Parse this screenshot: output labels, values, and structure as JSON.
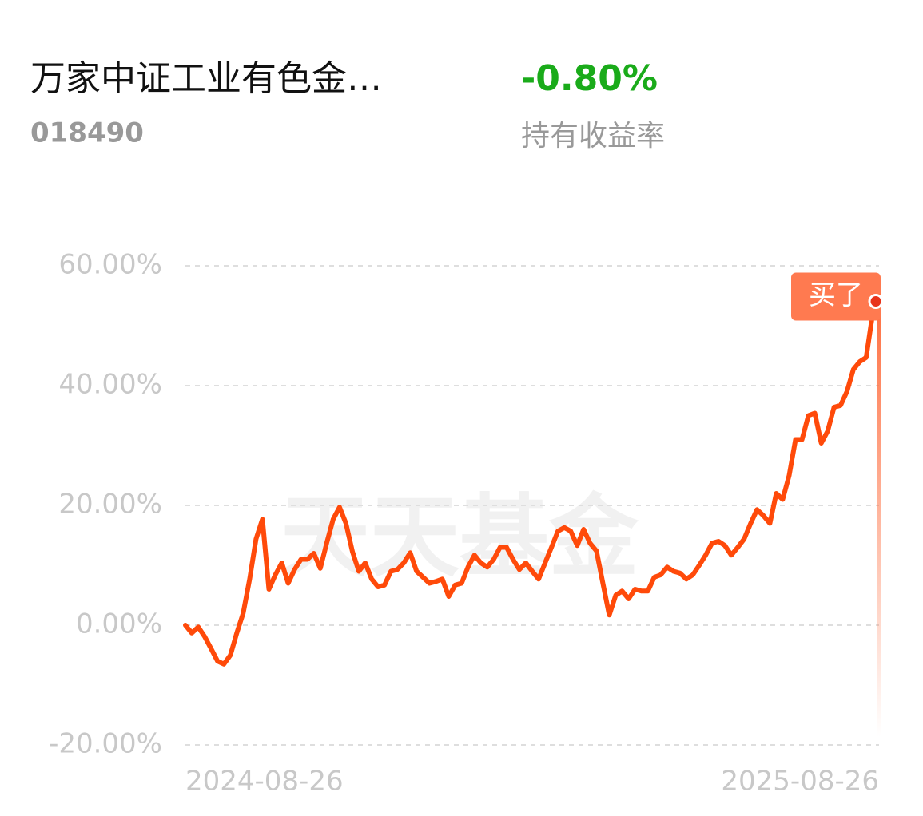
{
  "header": {
    "title": "万家中证工业有色金…",
    "code": "018490",
    "return_value": "-0.80%",
    "return_label": "持有收益率"
  },
  "chart_data": {
    "type": "line",
    "watermark": "天天基金",
    "annotation": "买了",
    "categories": [
      "2024-08-26",
      null,
      null,
      null,
      null,
      null,
      null,
      null,
      null,
      null,
      null,
      null,
      null,
      null,
      null,
      null,
      null,
      null,
      null,
      null,
      null,
      null,
      null,
      null,
      null,
      null,
      null,
      null,
      null,
      null,
      null,
      null,
      null,
      null,
      null,
      null,
      null,
      null,
      null,
      null,
      null,
      null,
      null,
      null,
      null,
      null,
      null,
      null,
      null,
      null,
      null,
      null,
      null,
      null,
      null,
      null,
      null,
      null,
      null,
      null,
      null,
      null,
      null,
      null,
      null,
      null,
      null,
      null,
      null,
      null,
      null,
      null,
      null,
      null,
      null,
      null,
      null,
      null,
      null,
      null,
      null,
      null,
      null,
      null,
      null,
      null,
      null,
      null,
      null,
      null,
      null,
      null,
      null,
      null,
      null,
      null,
      null,
      null,
      null,
      null,
      null,
      null,
      null,
      null,
      null,
      null,
      null,
      null,
      "2025-08-26"
    ],
    "series": [
      {
        "color": "#ff4a0a",
        "values": [
          0,
          -1.3,
          -0.3,
          -1.9,
          -3.9,
          -6,
          -6.5,
          -5,
          -1.3,
          2,
          7.7,
          14.4,
          17.7,
          6,
          8.4,
          10.4,
          7,
          9.3,
          11,
          11,
          12,
          9.5,
          13.7,
          17.7,
          19.7,
          17,
          12.3,
          9,
          10.4,
          7.7,
          6.4,
          6.7,
          9,
          9.3,
          10.4,
          12.1,
          9,
          8,
          7,
          7.3,
          7.7,
          4.8,
          6.7,
          7,
          9.7,
          11.7,
          10.4,
          9.7,
          11,
          13,
          13,
          11,
          9.3,
          10.4,
          9,
          7.7,
          10.4,
          13,
          15.7,
          16.3,
          15.7,
          13.3,
          16,
          13.7,
          12.4,
          7,
          1.7,
          5,
          5.7,
          4.4,
          6,
          5.7,
          5.7,
          8,
          8.4,
          9.7,
          9,
          8.7,
          7.7,
          8.4,
          10,
          11.7,
          13.7,
          14,
          13.3,
          11.7,
          13,
          14.4,
          17,
          19.3,
          18.3,
          17,
          22,
          21,
          25,
          31,
          31,
          35,
          35.4,
          30.4,
          32.4,
          36.4,
          36.7,
          39,
          42.7,
          44,
          44.7,
          52,
          53
        ]
      }
    ],
    "ylim": [
      -20,
      60
    ],
    "yticks": [
      {
        "value": -20,
        "label": "-20.00%"
      },
      {
        "value": 0,
        "label": "0.00%"
      },
      {
        "value": 20,
        "label": "20.00%"
      },
      {
        "value": 40,
        "label": "40.00%"
      },
      {
        "value": 60,
        "label": "60.00%"
      }
    ],
    "grid": true
  }
}
